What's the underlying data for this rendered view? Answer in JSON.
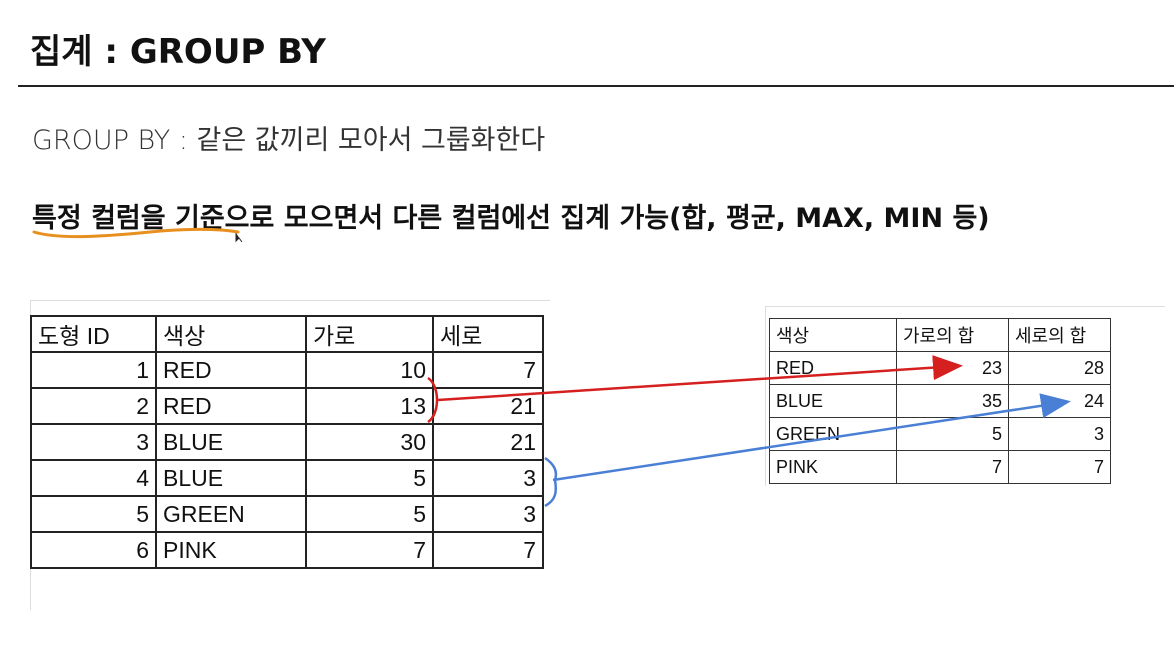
{
  "title": "집계 : GROUP BY",
  "subtitle": "GROUP BY : 같은 값끼리 모아서 그룹화한다",
  "emphasis": "특정 컬럼을 기준으로 모으면서 다른 컬럼에선 집계 가능(합, 평균, MAX, MIN 등)",
  "colors": {
    "underline": "#e8901f",
    "red_arrow": "#d62020",
    "blue_arrow": "#4a7fd6"
  },
  "source_table": {
    "headers": [
      "도형 ID",
      "색상",
      "가로",
      "세로"
    ],
    "rows": [
      [
        "1",
        "RED",
        "10",
        "7"
      ],
      [
        "2",
        "RED",
        "13",
        "21"
      ],
      [
        "3",
        "BLUE",
        "30",
        "21"
      ],
      [
        "4",
        "BLUE",
        "5",
        "3"
      ],
      [
        "5",
        "GREEN",
        "5",
        "3"
      ],
      [
        "6",
        "PINK",
        "7",
        "7"
      ]
    ]
  },
  "result_table": {
    "headers": [
      "색상",
      "가로의 합",
      "세로의 합"
    ],
    "rows": [
      [
        "RED",
        "23",
        "28"
      ],
      [
        "BLUE",
        "35",
        "24"
      ],
      [
        "GREEN",
        "5",
        "3"
      ],
      [
        "PINK",
        "7",
        "7"
      ]
    ]
  }
}
